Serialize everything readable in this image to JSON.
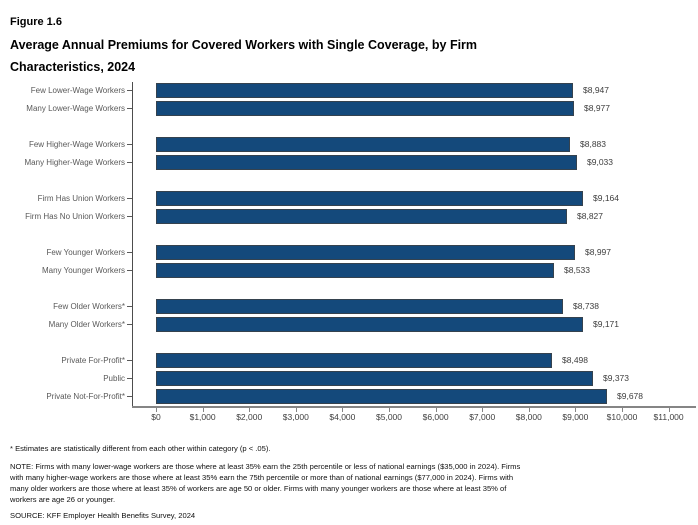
{
  "header": {
    "figure_label": "Figure 1.6",
    "title_lines": [
      "Average Annual Premiums for Covered Workers with Single Coverage, by Firm",
      "Characteristics, 2024"
    ]
  },
  "chart_data": {
    "type": "bar",
    "orientation": "horizontal",
    "title": "Average Annual Premiums for Covered Workers with Single Coverage, by Firm Characteristics, 2024",
    "xlabel": "",
    "ylabel": "",
    "xlim": [
      0,
      11000
    ],
    "grid": false,
    "bar_color": "#14497B",
    "groups": [
      {
        "rows": [
          {
            "label": "Few Lower-Wage Workers",
            "value": 8947,
            "display": "$8,947"
          },
          {
            "label": "Many Lower-Wage Workers",
            "value": 8977,
            "display": "$8,977"
          }
        ]
      },
      {
        "rows": [
          {
            "label": "Few Higher-Wage Workers",
            "value": 8883,
            "display": "$8,883"
          },
          {
            "label": "Many Higher-Wage Workers",
            "value": 9033,
            "display": "$9,033"
          }
        ]
      },
      {
        "rows": [
          {
            "label": "Firm Has Union Workers",
            "value": 9164,
            "display": "$9,164"
          },
          {
            "label": "Firm Has No Union Workers",
            "value": 8827,
            "display": "$8,827"
          }
        ]
      },
      {
        "rows": [
          {
            "label": "Few Younger Workers",
            "value": 8997,
            "display": "$8,997"
          },
          {
            "label": "Many Younger Workers",
            "value": 8533,
            "display": "$8,533"
          }
        ]
      },
      {
        "rows": [
          {
            "label": "Few Older Workers*",
            "value": 8738,
            "display": "$8,738"
          },
          {
            "label": "Many Older Workers*",
            "value": 9171,
            "display": "$9,171"
          }
        ]
      },
      {
        "rows": [
          {
            "label": "Private For-Profit*",
            "value": 8498,
            "display": "$8,498"
          },
          {
            "label": "Public",
            "value": 9373,
            "display": "$9,373"
          },
          {
            "label": "Private Not-For-Profit*",
            "value": 9678,
            "display": "$9,678"
          }
        ]
      }
    ],
    "x_ticks": [
      {
        "value": 0,
        "label": "$0"
      },
      {
        "value": 1000,
        "label": "$1,000"
      },
      {
        "value": 2000,
        "label": "$2,000"
      },
      {
        "value": 3000,
        "label": "$3,000"
      },
      {
        "value": 4000,
        "label": "$4,000"
      },
      {
        "value": 5000,
        "label": "$5,000"
      },
      {
        "value": 6000,
        "label": "$6,000"
      },
      {
        "value": 7000,
        "label": "$7,000"
      },
      {
        "value": 8000,
        "label": "$8,000"
      },
      {
        "value": 9000,
        "label": "$9,000"
      },
      {
        "value": 10000,
        "label": "$10,000"
      },
      {
        "value": 11000,
        "label": "$11,000"
      }
    ]
  },
  "footnotes": {
    "star": "* Estimates are statistically different from each other within category (p < .05).",
    "note_lines": [
      "NOTE: Firms with many lower-wage workers are those where at least 35% earn the 25th percentile or less of national earnings ($35,000 in 2024). Firms",
      "with many higher-wage workers are those where at least 35% earn the 75th percentile or more than of national earnings ($77,000 in 2024). Firms with",
      "many older workers are those where at least 35% of workers are age 50 or older. Firms with many younger workers are those where at least 35% of",
      "workers are age 26 or younger."
    ],
    "source": "SOURCE: KFF Employer Health Benefits Survey, 2024"
  }
}
